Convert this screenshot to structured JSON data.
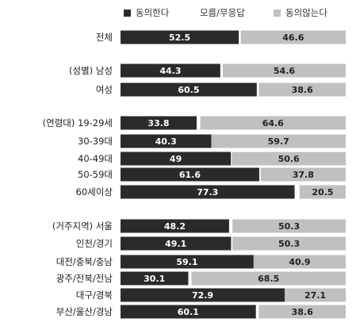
{
  "chart_data": {
    "type": "bar",
    "stacked": true,
    "orientation": "horizontal",
    "legend_position": "top",
    "xlim": [
      0,
      100
    ],
    "series": [
      {
        "name": "동의한다",
        "color": "#2a2a2a"
      },
      {
        "name": "모름/무응답",
        "color": "#ffffff"
      },
      {
        "name": "동의않는다",
        "color": "#c0c0c0"
      }
    ],
    "rows": [
      {
        "label": "전체",
        "agree": 52.5,
        "disagree": 46.6
      },
      {
        "group": "(성별)",
        "label": "남성",
        "agree": 44.3,
        "disagree": 54.6
      },
      {
        "label": "여성",
        "agree": 60.5,
        "disagree": 38.6
      },
      {
        "group": "(연령대)",
        "label": "19-29세",
        "agree": 33.8,
        "disagree": 64.6
      },
      {
        "label": "30-39대",
        "agree": 40.3,
        "disagree": 59.7
      },
      {
        "label": "40-49대",
        "agree": 49,
        "disagree": 50.6
      },
      {
        "label": "50-59대",
        "agree": 61.6,
        "disagree": 37.8
      },
      {
        "label": "60세이상",
        "agree": 77.3,
        "disagree": 20.5
      },
      {
        "group": "(거주지역)",
        "label": "서울",
        "agree": 48.2,
        "disagree": 50.3
      },
      {
        "label": "인천/경기",
        "agree": 49.1,
        "disagree": 50.3
      },
      {
        "label": "대전/충북/충남",
        "agree": 59.1,
        "disagree": 40.9
      },
      {
        "label": "광주/전북/전남",
        "agree": 30.1,
        "disagree": 68.5
      },
      {
        "label": "대구/경북",
        "agree": 72.9,
        "disagree": 27.1
      },
      {
        "label": "부산/울산/경남",
        "agree": 60.1,
        "disagree": 38.6
      }
    ]
  }
}
